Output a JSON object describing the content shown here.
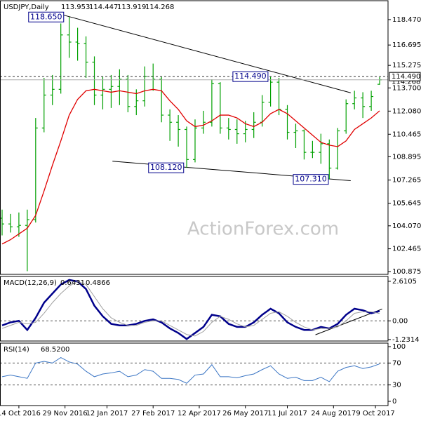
{
  "chart_data": [
    {
      "type": "ohlc",
      "title": "USDJPY,Daily",
      "watermark": "ActionForex.com",
      "color": "#00a000",
      "x": [
        0,
        2,
        4,
        6,
        8,
        10,
        12,
        14,
        16,
        18,
        20,
        22,
        24,
        26,
        28,
        30,
        32,
        34,
        36,
        38,
        40,
        42,
        44,
        46,
        48,
        50,
        52,
        54,
        56,
        58,
        60,
        62,
        64,
        66,
        68,
        70,
        72,
        74,
        76,
        78,
        80,
        82,
        84,
        86,
        88,
        90
      ],
      "open": [
        104.6,
        104.2,
        104.0,
        104.1,
        104.5,
        110.9,
        113.2,
        113.6,
        117.4,
        116.9,
        116.8,
        115.5,
        113.2,
        113.6,
        113.8,
        114.3,
        112.4,
        112.8,
        114.5,
        114.3,
        111.8,
        111.3,
        110.8,
        108.7,
        110.9,
        111.3,
        114.0,
        110.9,
        110.8,
        110.5,
        110.8,
        111.3,
        112.7,
        114.1,
        112.2,
        110.6,
        110.7,
        109.2,
        109.2,
        109.8,
        108.1,
        110.7,
        112.6,
        113.0,
        112.4,
        113.953
      ],
      "high": [
        105.2,
        104.9,
        105.0,
        105.2,
        111.6,
        114.4,
        114.6,
        118.2,
        118.65,
        117.9,
        117.3,
        115.9,
        114.5,
        114.6,
        115.0,
        114.6,
        113.6,
        115.2,
        115.4,
        114.5,
        112.2,
        111.8,
        111.0,
        111.5,
        112.1,
        114.3,
        114.1,
        111.6,
        111.5,
        111.4,
        112.0,
        113.2,
        114.49,
        114.4,
        112.5,
        111.2,
        110.8,
        110.0,
        110.5,
        110.1,
        110.9,
        112.9,
        113.5,
        113.4,
        113.5,
        114.447
      ],
      "low": [
        103.4,
        103.6,
        103.3,
        100.9,
        104.3,
        110.6,
        112.5,
        113.3,
        115.8,
        115.6,
        114.4,
        112.5,
        112.2,
        112.3,
        112.5,
        112.0,
        111.8,
        112.4,
        113.5,
        111.3,
        110.0,
        109.6,
        108.12,
        108.5,
        110.5,
        111.0,
        110.5,
        110.1,
        109.8,
        109.9,
        110.2,
        111.0,
        112.4,
        111.8,
        110.1,
        109.5,
        108.7,
        108.8,
        108.4,
        107.31,
        108.0,
        110.5,
        112.2,
        111.6,
        112.1,
        113.919
      ],
      "close": [
        104.2,
        104.0,
        104.1,
        104.5,
        110.9,
        113.2,
        113.6,
        117.4,
        116.9,
        116.8,
        115.5,
        113.2,
        113.6,
        113.8,
        114.3,
        112.4,
        112.8,
        114.5,
        114.3,
        111.8,
        111.3,
        110.8,
        108.7,
        110.9,
        111.3,
        114.0,
        110.9,
        110.8,
        110.5,
        110.8,
        111.3,
        112.7,
        114.1,
        112.2,
        110.6,
        110.7,
        109.2,
        109.2,
        109.8,
        108.1,
        110.7,
        112.6,
        113.0,
        112.4,
        113.1,
        114.268
      ],
      "ma": {
        "color": "#e00000",
        "values": [
          102.8,
          103.1,
          103.5,
          103.9,
          104.8,
          106.5,
          108.3,
          110.0,
          111.8,
          112.9,
          113.5,
          113.6,
          113.5,
          113.4,
          113.5,
          113.4,
          113.3,
          113.5,
          113.6,
          113.5,
          112.8,
          112.2,
          111.4,
          111.0,
          111.1,
          111.4,
          111.8,
          111.8,
          111.6,
          111.2,
          111.0,
          111.3,
          111.9,
          112.2,
          111.9,
          111.4,
          110.9,
          110.4,
          109.9,
          109.7,
          109.6,
          110.0,
          110.8,
          111.2,
          111.6,
          112.1
        ]
      },
      "xlim": [
        -0.5,
        92
      ],
      "ylim": [
        100.68,
        119.79
      ],
      "yticks": [
        {
          "value": 118.47,
          "label": "118.470"
        },
        {
          "value": 116.695,
          "label": "116.695"
        },
        {
          "value": 115.275,
          "label": "115.275"
        },
        {
          "value": 113.7,
          "label": "113.700"
        },
        {
          "value": 112.08,
          "label": "112.080"
        },
        {
          "value": 110.465,
          "label": "110.465"
        },
        {
          "value": 108.895,
          "label": "108.895"
        },
        {
          "value": 107.265,
          "label": "107.265"
        },
        {
          "value": 105.645,
          "label": "105.645"
        },
        {
          "value": 104.07,
          "label": "104.070"
        },
        {
          "value": 102.465,
          "label": "102.465"
        },
        {
          "value": 100.875,
          "label": "100.875"
        }
      ],
      "level": {
        "value": 114.49,
        "label": "114.490"
      },
      "last": {
        "value": 114.268,
        "label": "114.268"
      },
      "trendlines": [
        {
          "from": [
            14.2,
            118.82
          ],
          "to": [
            83.1,
            113.36
          ]
        },
        {
          "from": [
            26.3,
            108.58
          ],
          "to": [
            83.1,
            107.22
          ]
        }
      ],
      "annotations": [
        {
          "x": 10.5,
          "value": 118.65,
          "label": "118.650"
        },
        {
          "x": 59.2,
          "value": 114.49,
          "label": "114.490"
        },
        {
          "x": 39.1,
          "value": 108.12,
          "label": "108.120"
        },
        {
          "x": 73.6,
          "value": 107.31,
          "label": "107.310"
        }
      ]
    },
    {
      "type": "line",
      "title": "MACD(12,26,9)",
      "x": [
        0,
        2,
        4,
        6,
        8,
        10,
        12,
        14,
        16,
        18,
        20,
        22,
        24,
        26,
        28,
        30,
        32,
        34,
        36,
        38,
        40,
        42,
        44,
        46,
        48,
        50,
        52,
        54,
        56,
        58,
        60,
        62,
        64,
        66,
        68,
        70,
        72,
        74,
        76,
        78,
        80,
        82,
        84,
        86,
        88,
        90
      ],
      "series": [
        {
          "color": "#00008b",
          "width": 2.5,
          "values": [
            -0.3,
            -0.1,
            0.0,
            -0.6,
            0.2,
            1.2,
            1.8,
            2.4,
            2.7,
            2.6,
            2.1,
            1.0,
            0.3,
            -0.2,
            -0.3,
            -0.3,
            -0.2,
            0.0,
            0.1,
            -0.1,
            -0.5,
            -0.8,
            -1.2,
            -0.8,
            -0.4,
            0.4,
            0.3,
            -0.2,
            -0.4,
            -0.4,
            -0.1,
            0.4,
            0.8,
            0.5,
            -0.1,
            -0.4,
            -0.6,
            -0.6,
            -0.4,
            -0.5,
            -0.2,
            0.4,
            0.8,
            0.7,
            0.5,
            0.6431
          ]
        },
        {
          "color": "#a0a0a0",
          "width": 1,
          "values": [
            -0.5,
            -0.3,
            -0.1,
            -0.2,
            -0.1,
            0.5,
            1.2,
            1.8,
            2.3,
            2.6,
            2.4,
            1.6,
            0.8,
            0.2,
            -0.1,
            -0.3,
            -0.3,
            -0.1,
            0.0,
            0.0,
            -0.3,
            -0.6,
            -0.9,
            -1.0,
            -0.7,
            -0.1,
            0.3,
            0.1,
            -0.2,
            -0.4,
            -0.3,
            0.1,
            0.5,
            0.6,
            0.3,
            -0.1,
            -0.4,
            -0.6,
            -0.5,
            -0.5,
            -0.4,
            0.0,
            0.5,
            0.6,
            0.6,
            0.4866
          ]
        }
      ],
      "xlim": [
        -0.5,
        92
      ],
      "ylim": [
        -1.33,
        2.93
      ],
      "yticks": [
        2.6105,
        {
          "value": 0,
          "label": "0.00"
        },
        -1.2314
      ],
      "levels": [
        0
      ],
      "trendlines": [
        {
          "from": [
            74.7,
            -0.92
          ],
          "to": [
            90.6,
            0.78
          ]
        }
      ]
    },
    {
      "type": "line",
      "title": "RSI(14)",
      "readout": {
        "value": 68.52,
        "label": "68.5200"
      },
      "x": [
        0,
        2,
        4,
        6,
        8,
        10,
        12,
        14,
        16,
        18,
        20,
        22,
        24,
        26,
        28,
        30,
        32,
        34,
        36,
        38,
        40,
        42,
        44,
        46,
        48,
        50,
        52,
        54,
        56,
        58,
        60,
        62,
        64,
        66,
        68,
        70,
        72,
        74,
        76,
        78,
        80,
        82,
        84,
        86,
        88,
        90
      ],
      "series": [
        {
          "color": "#3a75c4",
          "width": 1,
          "values": [
            45,
            48,
            45,
            42,
            70,
            73,
            70,
            80,
            72,
            68,
            55,
            45,
            50,
            52,
            55,
            45,
            48,
            58,
            55,
            42,
            42,
            40,
            33,
            48,
            50,
            67,
            45,
            45,
            43,
            47,
            50,
            58,
            65,
            50,
            42,
            44,
            38,
            38,
            44,
            36,
            55,
            62,
            65,
            60,
            63,
            68.52
          ]
        }
      ],
      "xlim": [
        -0.5,
        92
      ],
      "ylim": [
        -7.7,
        106.4
      ],
      "yticks": [
        100,
        70,
        30,
        0
      ],
      "levels": [
        70,
        30
      ],
      "xticks": [
        {
          "value": 4,
          "label": "14 Oct 2016"
        },
        {
          "value": 15,
          "label": "29 Nov 2016"
        },
        {
          "value": 25,
          "label": "12 Jan 2017"
        },
        {
          "value": 36,
          "label": "27 Feb 2017"
        },
        {
          "value": 47,
          "label": "12 Apr 2017"
        },
        {
          "value": 58,
          "label": "26 May 2017"
        },
        {
          "value": 68,
          "label": "11 Jul 2017"
        },
        {
          "value": 79,
          "label": "24 Aug 2017"
        },
        {
          "value": 89,
          "label": "9 Oct 2017"
        }
      ]
    }
  ]
}
